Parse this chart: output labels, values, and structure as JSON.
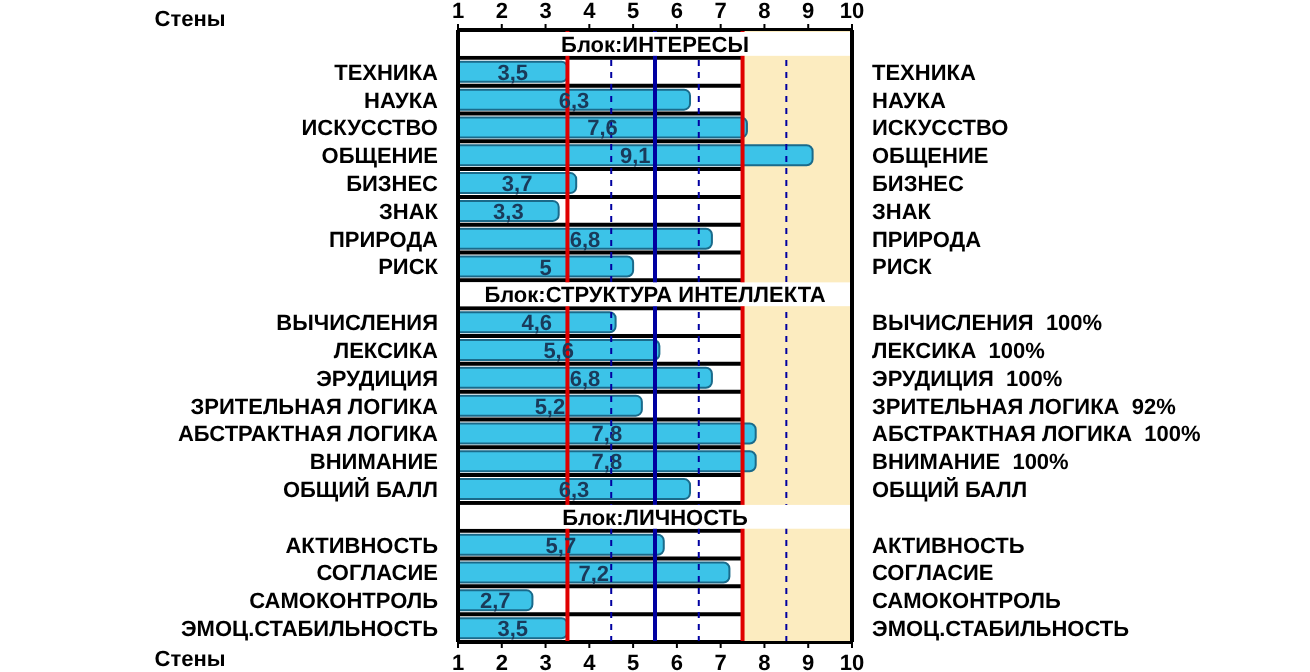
{
  "chart_data": {
    "type": "bar",
    "orientation": "horizontal",
    "xlabel": "Стены",
    "x2label": "Стены",
    "categories": [
      null,
      "ТЕХНИКА",
      "НАУКА",
      "ИСКУССТВО",
      "ОБЩЕНИЕ",
      "БИЗНЕС",
      "ЗНАК",
      "ПРИРОДА",
      "РИСК",
      null,
      "ВЫЧИСЛЕНИЯ",
      "ЛЕКСИКА",
      "ЭРУДИЦИЯ",
      "ЗРИТЕЛЬНАЯ ЛОГИКА",
      "АБСТРАКТНАЯ ЛОГИКА",
      "ВНИМАНИЕ",
      "ОБЩИЙ БАЛЛ",
      null,
      "АКТИВНОСТЬ",
      "СОГЛАСИЕ",
      "САМОКОНТРОЛЬ",
      "ЭМОЦ.СТАБИЛЬНОСТЬ"
    ],
    "y2_categories": [
      null,
      "ТЕХНИКА",
      "НАУКА",
      "ИСКУССТВО",
      "ОБЩЕНИЕ",
      "БИЗНЕС",
      "ЗНАК",
      "ПРИРОДА",
      "РИСК",
      null,
      "ВЫЧИСЛЕНИЯ  100%",
      "ЛЕКСИКА  100%",
      "ЭРУДИЦИЯ  100%",
      "ЗРИТЕЛЬНАЯ ЛОГИКА  92%",
      "АБСТРАКТНАЯ ЛОГИКА  100%",
      "ВНИМАНИЕ  100%",
      "ОБЩИЙ БАЛЛ",
      null,
      "АКТИВНОСТЬ",
      "СОГЛАСИЕ",
      "САМОКОНТРОЛЬ",
      "ЭМОЦ.СТАБИЛЬНОСТЬ"
    ],
    "values": [
      null,
      3.5,
      6.3,
      7.6,
      9.1,
      3.7,
      3.3,
      6.8,
      5,
      null,
      4.6,
      5.6,
      6.8,
      5.2,
      7.8,
      7.8,
      6.3,
      null,
      5.7,
      7.2,
      2.7,
      3.5
    ],
    "value_labels": [
      null,
      "3,5",
      "6,3",
      "7,6",
      "9,1",
      "3,7",
      "3,3",
      "6,8",
      "5",
      null,
      "4,6",
      "5,6",
      "6,8",
      "5,2",
      "7,8",
      "7,8",
      "6,3",
      null,
      "5,7",
      "7,2",
      "2,7",
      "3,5"
    ],
    "color": "#3cc3e8",
    "annotations": [
      "Блок:ИНТЕРЕСЫ",
      "Блок:СТРУКТУРА ИНТЕЛЛЕКТА",
      "Блок:ЛИЧНОСТЬ"
    ],
    "xlim": [
      1,
      10
    ],
    "xticks": [
      1,
      2,
      3,
      4,
      5,
      6,
      7,
      8,
      9,
      10
    ],
    "x2lim": [
      1,
      10
    ],
    "x2ticks": [
      1,
      2,
      3,
      4,
      5,
      6,
      7,
      8,
      9,
      10
    ],
    "ref_lines": [
      {
        "axis": "x",
        "value": 3.5,
        "color": "#e00000",
        "line_style": "solid"
      },
      {
        "axis": "x",
        "value": 4.5,
        "color": "#0000a0",
        "line_style": "dashed"
      },
      {
        "axis": "x",
        "value": 5.5,
        "color": "#0000a0",
        "line_style": "solid"
      },
      {
        "axis": "x",
        "value": 6.5,
        "color": "#0000a0",
        "line_style": "dashed"
      },
      {
        "axis": "x",
        "value": 7.5,
        "color": "#e00000",
        "line_style": "solid"
      },
      {
        "axis": "x",
        "value": 8.5,
        "color": "#0000a0",
        "line_style": "dashed"
      }
    ],
    "bands": [
      {
        "axis": "x",
        "from": 7.5,
        "to": 10,
        "color": "#fcecc0"
      }
    ],
    "grid": "y"
  }
}
